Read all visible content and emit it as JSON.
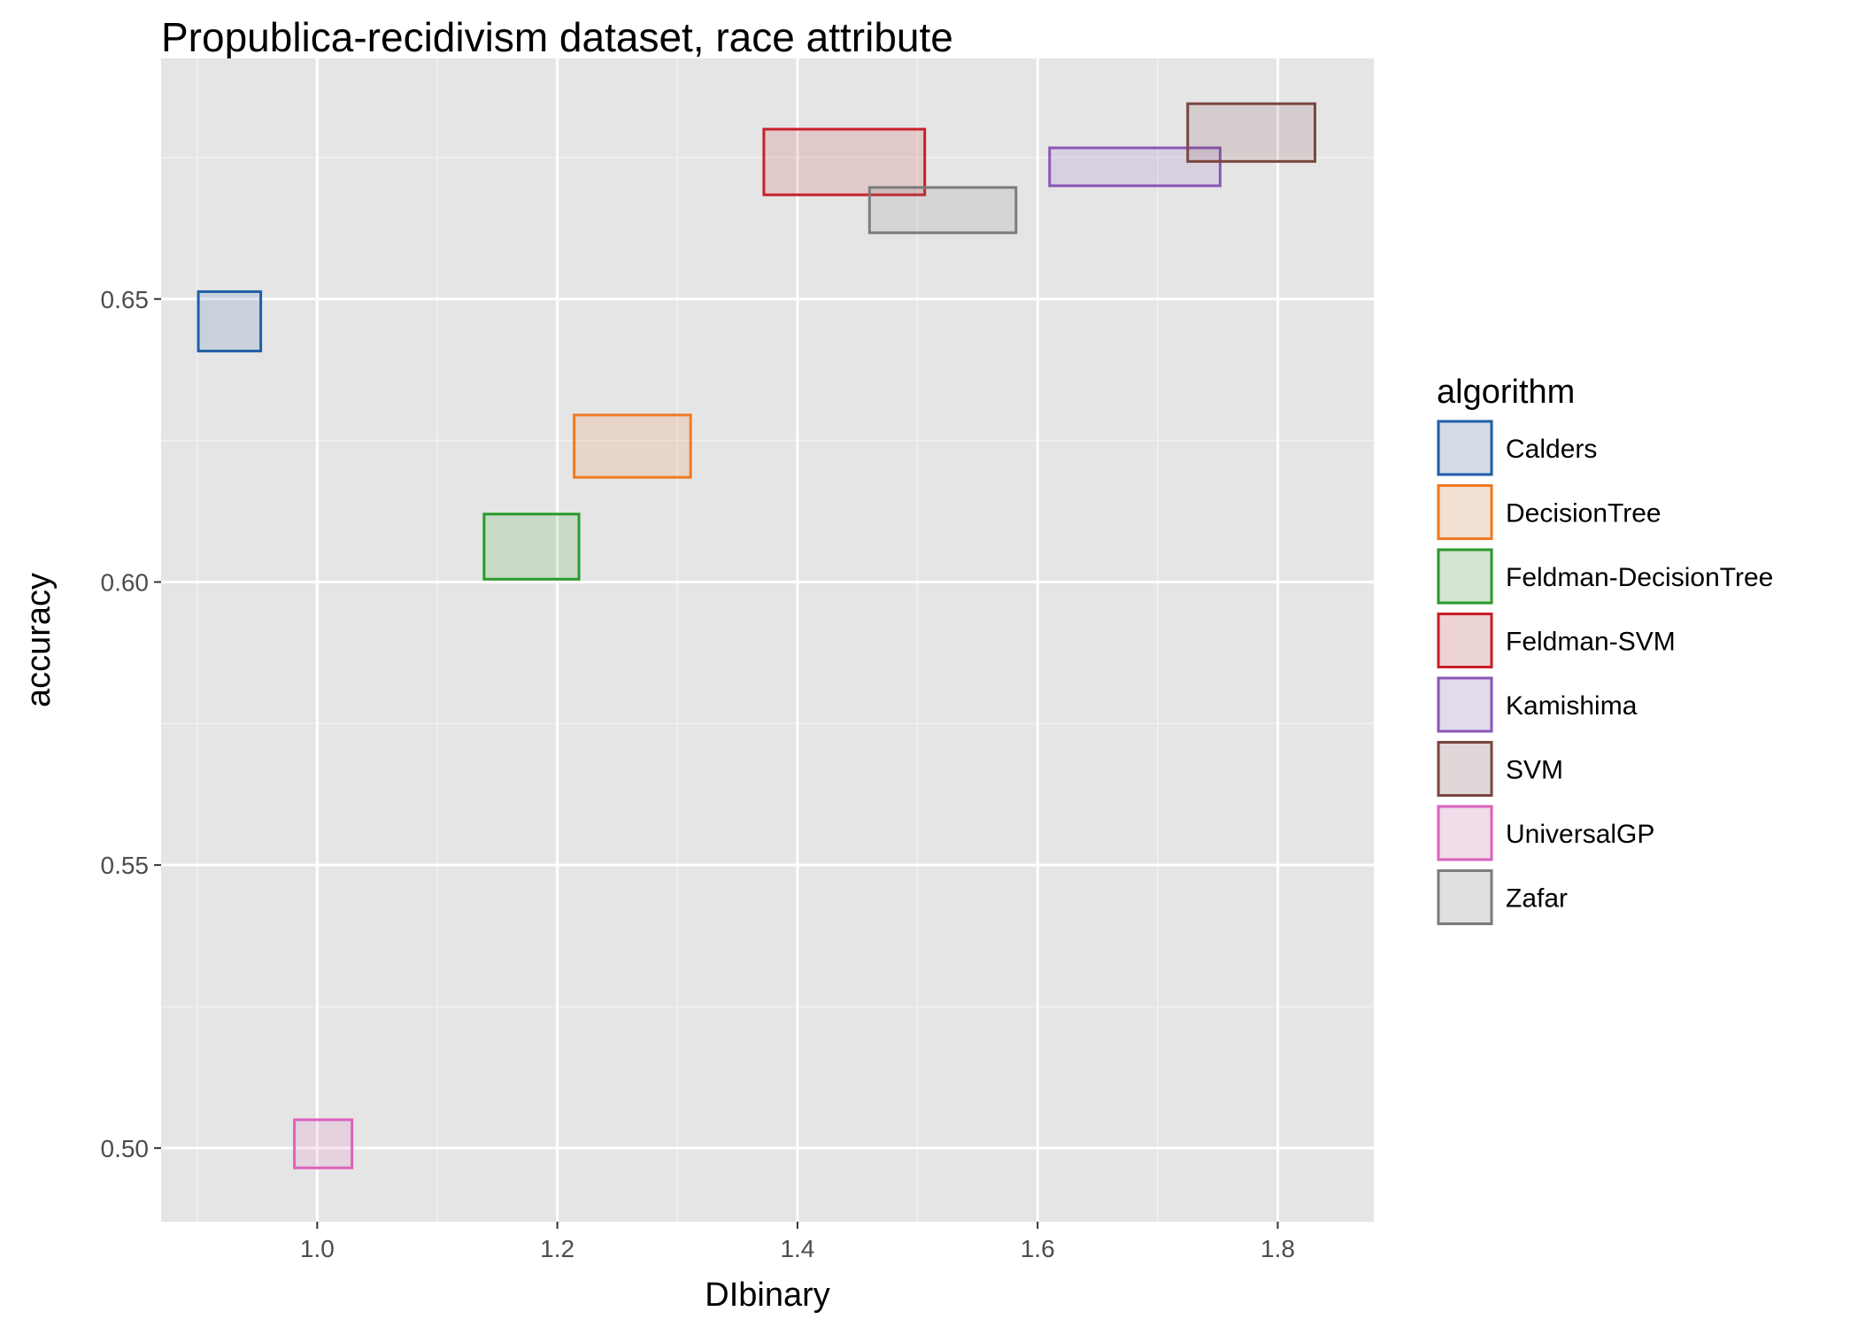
{
  "chart_data": {
    "type": "rectangle-range",
    "title": "Propublica-recidivism dataset, race attribute",
    "xlabel": "DIbinary",
    "ylabel": "accuracy",
    "xlim": [
      0.87,
      1.88
    ],
    "ylim": [
      0.487,
      0.6925
    ],
    "xticks": [
      1.0,
      1.2,
      1.4,
      1.6,
      1.8
    ],
    "xtick_labels": [
      "1.0",
      "1.2",
      "1.4",
      "1.6",
      "1.8"
    ],
    "yticks": [
      0.5,
      0.55,
      0.6,
      0.65
    ],
    "ytick_labels": [
      "0.50",
      "0.55",
      "0.60",
      "0.65"
    ],
    "grid": true,
    "legend_title": "algorithm",
    "legend_position": "right",
    "series": [
      {
        "name": "Calders",
        "color": "#1f5fa8",
        "x": [
          0.901,
          0.953
        ],
        "y": [
          0.6408,
          0.6513
        ]
      },
      {
        "name": "DecisionTree",
        "color": "#f07a22",
        "x": [
          1.214,
          1.311
        ],
        "y": [
          0.6185,
          0.6295
        ]
      },
      {
        "name": "Feldman-DecisionTree",
        "color": "#2a9a2a",
        "x": [
          1.139,
          1.218
        ],
        "y": [
          0.6005,
          0.612
        ]
      },
      {
        "name": "Feldman-SVM",
        "color": "#c8202a",
        "x": [
          1.372,
          1.506
        ],
        "y": [
          0.6684,
          0.68
        ]
      },
      {
        "name": "Kamishima",
        "color": "#8a56b8",
        "x": [
          1.61,
          1.752
        ],
        "y": [
          0.67,
          0.6767
        ]
      },
      {
        "name": "SVM",
        "color": "#7a4640",
        "x": [
          1.725,
          1.831
        ],
        "y": [
          0.6743,
          0.6845
        ]
      },
      {
        "name": "UniversalGP",
        "color": "#dc62bc",
        "x": [
          0.981,
          1.029
        ],
        "y": [
          0.4965,
          0.505
        ]
      },
      {
        "name": "Zafar",
        "color": "#7c7c7c",
        "x": [
          1.46,
          1.582
        ],
        "y": [
          0.6617,
          0.6697
        ]
      }
    ]
  }
}
